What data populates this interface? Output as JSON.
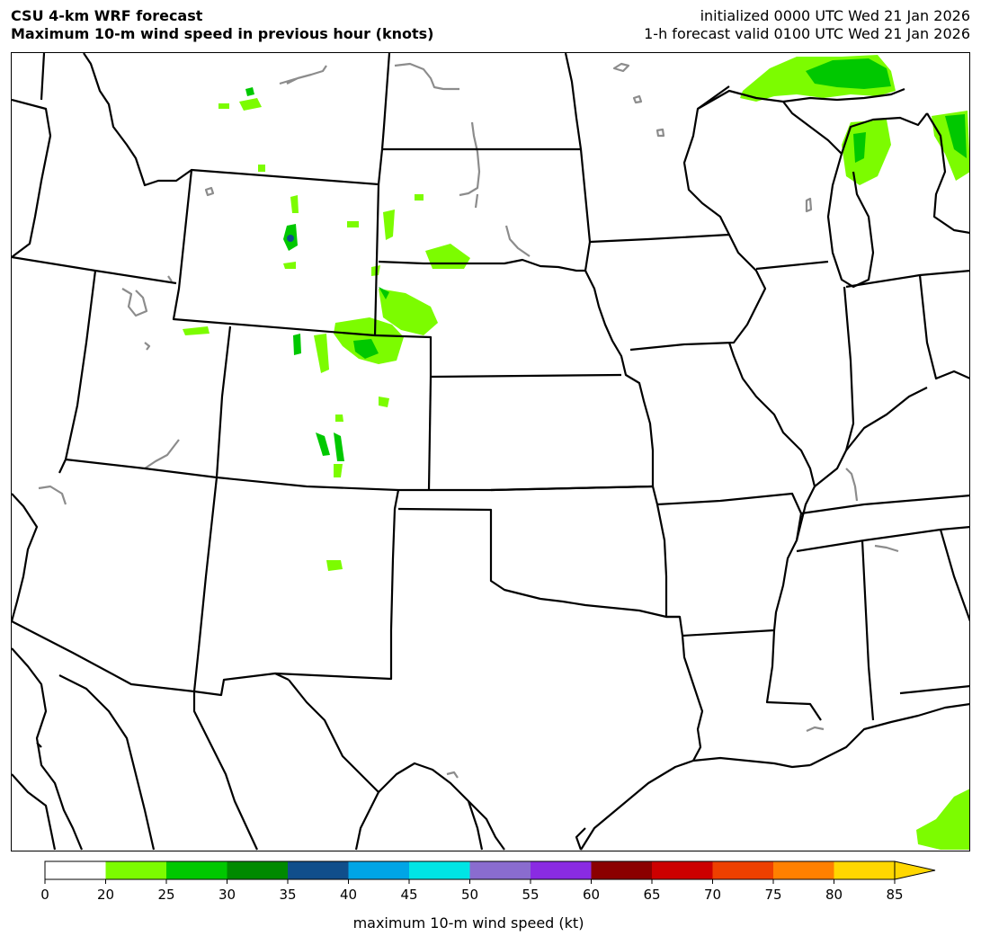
{
  "header": {
    "title_line1": "CSU 4-km WRF forecast",
    "title_line2": "Maximum 10-m wind speed in previous hour (knots)",
    "init_line": "initialized 0000 UTC Wed 21 Jan 2026",
    "valid_line": "1-h forecast valid 0100 UTC Wed 21 Jan 2026"
  },
  "colorbar": {
    "label": "maximum 10-m wind speed (kt)",
    "ticks": [
      "0",
      "20",
      "25",
      "30",
      "35",
      "40",
      "45",
      "50",
      "55",
      "60",
      "65",
      "70",
      "75",
      "80",
      "85"
    ],
    "colors": [
      "#ffffff",
      "#7cfc00",
      "#00c800",
      "#008a00",
      "#104e8b",
      "#00a5e6",
      "#00e5e5",
      "#8a6ccf",
      "#8a2be2",
      "#8b0000",
      "#cd0000",
      "#ee4000",
      "#ff8000",
      "#ffd700"
    ]
  },
  "palette": {
    "state_border": "#000000",
    "lake_outline": "#8c8c8c",
    "wind_20_25": "#7cfc00",
    "wind_25_30": "#00c800",
    "wind_30_35": "#008a00",
    "wind_35_40": "#104e8b"
  }
}
